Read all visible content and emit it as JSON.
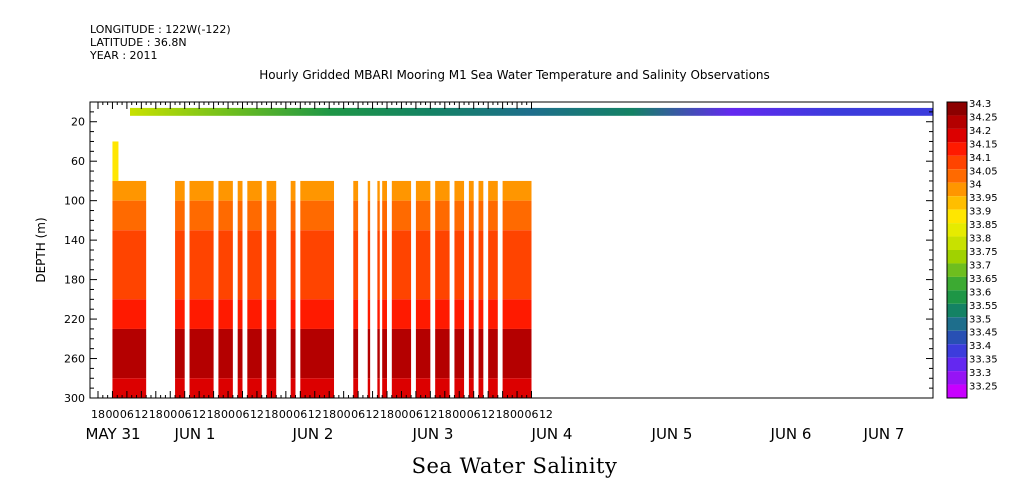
{
  "header": {
    "longitude": "LONGITUDE : 122W(-122)",
    "latitude": "LATITUDE : 36.8N",
    "year": "YEAR : 2011"
  },
  "chart_data": {
    "type": "heatmap",
    "title": "Hourly Gridded MBARI Mooring M1 Sea Water Temperature and Salinity Observations",
    "xlabel": "Sea Water Salinity",
    "ylabel": "DEPTH (m)",
    "y_ticks": [
      20,
      60,
      100,
      140,
      180,
      220,
      260,
      300
    ],
    "ylim": [
      300,
      0
    ],
    "x_hour_ticks": [
      "18",
      "00",
      "06",
      "12",
      "18",
      "00",
      "06",
      "12",
      "18",
      "00",
      "06",
      "12",
      "18",
      "00",
      "06",
      "12",
      "18",
      "00",
      "06",
      "12",
      "18",
      "00",
      "06",
      "12",
      "18",
      "00",
      "06",
      "12",
      "18",
      "00",
      "06",
      "12"
    ],
    "x_day_labels": [
      "MAY 31",
      "JUN  1",
      "JUN  2",
      "JUN  3",
      "JUN  4",
      "JUN  5",
      "JUN  6",
      "JUN  7"
    ],
    "colorbar": {
      "labels": [
        "34.3",
        "34.25",
        "34.2",
        "34.15",
        "34.1",
        "34.05",
        "34",
        "33.95",
        "33.9",
        "33.85",
        "33.8",
        "33.75",
        "33.7",
        "33.65",
        "33.6",
        "33.55",
        "33.5",
        "33.45",
        "33.4",
        "33.35",
        "33.3",
        "33.25"
      ],
      "colors": [
        "#8c0000",
        "#b40000",
        "#dc0000",
        "#ff1a00",
        "#ff4400",
        "#ff6a00",
        "#ff9600",
        "#ffbe00",
        "#ffe600",
        "#e6eb00",
        "#c8e100",
        "#a0d200",
        "#6ebe1e",
        "#3caa32",
        "#1e9646",
        "#148264",
        "#1e6e8c",
        "#2850b4",
        "#3c3cdc",
        "#6428f0",
        "#9614f5",
        "#c800ff"
      ]
    },
    "depth_bands": [
      {
        "depth_from": 80,
        "depth_to": 100,
        "salinity": 34.0
      },
      {
        "depth_from": 100,
        "depth_to": 130,
        "salinity": 34.05
      },
      {
        "depth_from": 130,
        "depth_to": 200,
        "salinity": 34.1
      },
      {
        "depth_from": 200,
        "depth_to": 230,
        "salinity": 34.15
      },
      {
        "depth_from": 230,
        "depth_to": 280,
        "salinity": 34.25
      },
      {
        "depth_from": 280,
        "depth_to": 300,
        "salinity": 34.2
      }
    ],
    "surface_band": {
      "depth_from": 6,
      "depth_to": 14,
      "values": [
        33.8,
        33.7,
        33.6,
        33.55,
        33.5,
        33.55,
        33.35,
        33.4,
        33.4
      ]
    },
    "data_segments_hours": [
      [
        0,
        14
      ],
      [
        26,
        30
      ],
      [
        32,
        42
      ],
      [
        44,
        50
      ],
      [
        52,
        54
      ],
      [
        56,
        62
      ],
      [
        64,
        68
      ],
      [
        74,
        76
      ],
      [
        78,
        92
      ],
      [
        100,
        102
      ],
      [
        106,
        107
      ],
      [
        110,
        111
      ],
      [
        112,
        114
      ],
      [
        116,
        124
      ],
      [
        126,
        132
      ],
      [
        134,
        140
      ],
      [
        142,
        146
      ],
      [
        148,
        150
      ],
      [
        152,
        154
      ],
      [
        156,
        160
      ],
      [
        162,
        174
      ]
    ]
  }
}
